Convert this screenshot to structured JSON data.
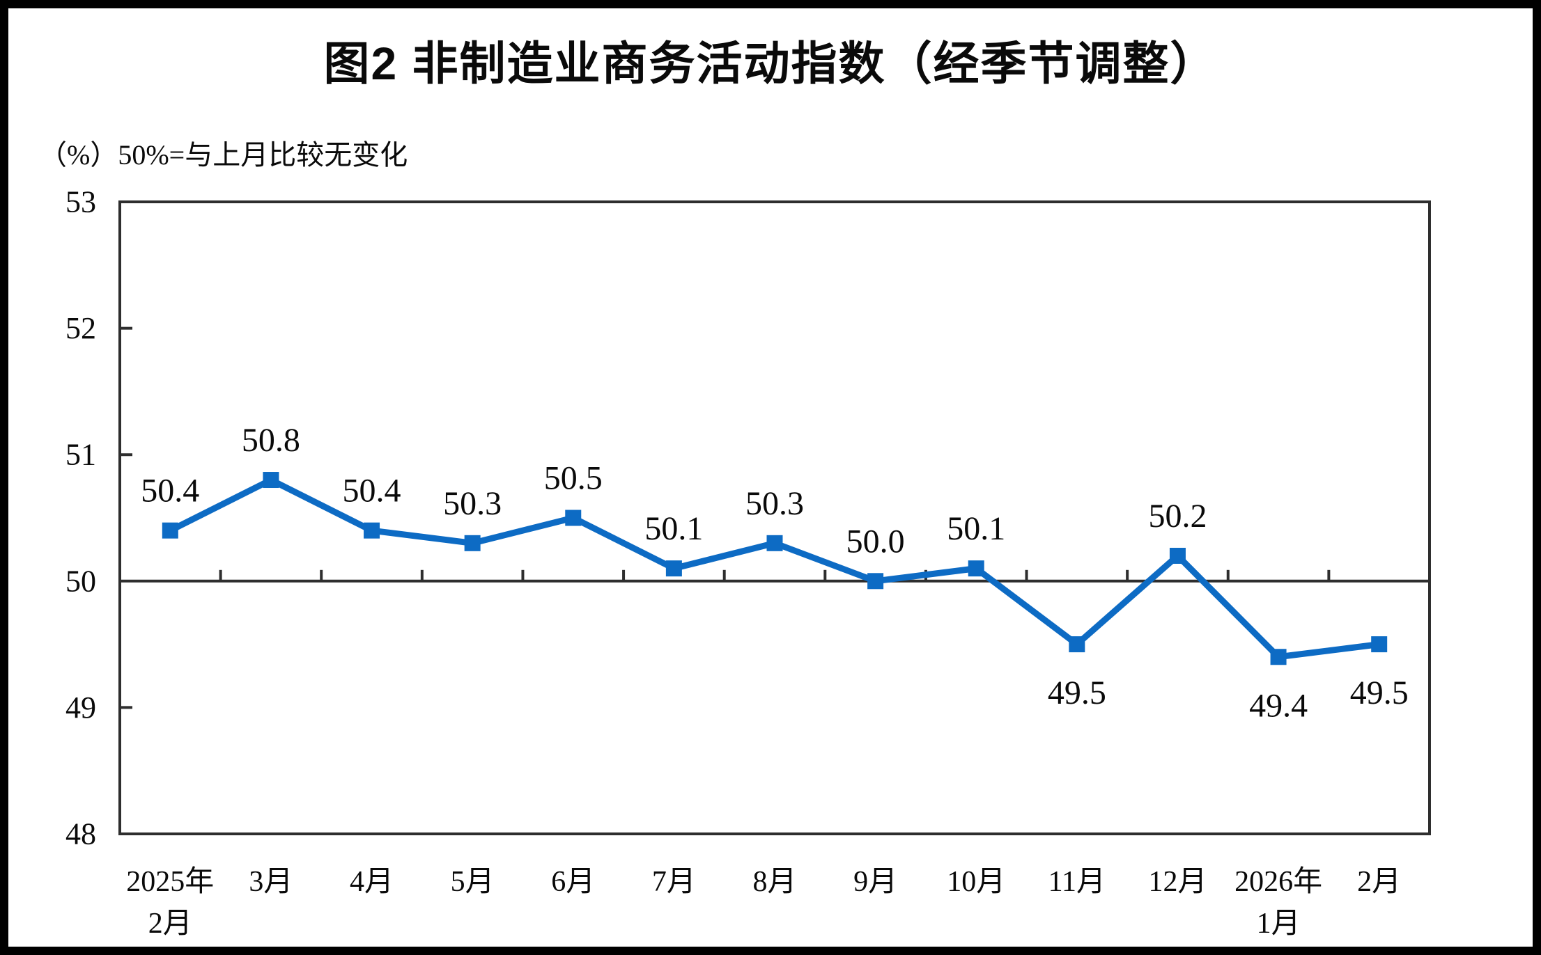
{
  "title": "图2 非制造业商务活动指数（经季节调整）",
  "unit_note": "（%）50%=与上月比较无变化",
  "chart_data": {
    "type": "line",
    "title": "图2 非制造业商务活动指数（经季节调整）",
    "subtitle": "（%）50%=与上月比较无变化",
    "categories": [
      "2025年\n2月",
      "3月",
      "4月",
      "5月",
      "6月",
      "7月",
      "8月",
      "9月",
      "10月",
      "11月",
      "12月",
      "2026年\n1月",
      "2月"
    ],
    "series": [
      {
        "name": "非制造业商务活动指数（经季节调整）",
        "values": [
          50.4,
          50.8,
          50.4,
          50.3,
          50.5,
          50.1,
          50.3,
          50.0,
          50.1,
          49.5,
          50.2,
          49.4,
          49.5
        ]
      }
    ],
    "data_label_positions": [
      "above",
      "above",
      "above",
      "above",
      "above",
      "above",
      "above",
      "above",
      "above",
      "below",
      "above",
      "below",
      "below"
    ],
    "ylim": [
      48,
      53
    ],
    "yticks": [
      48,
      49,
      50,
      51,
      52,
      53
    ],
    "reference_line_y": 50,
    "grid": "off",
    "legend": "none",
    "line_color": "#0d6bc4",
    "axis_color": "#2e2e2e",
    "label_color": "#0a0a0a"
  }
}
